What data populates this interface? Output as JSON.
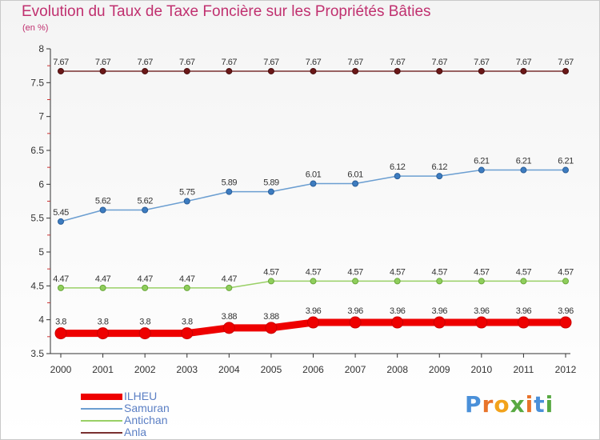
{
  "title": "Evolution du Taux de Taxe Foncière sur les Propriétés Bâties",
  "unit": "(en %)",
  "logo": "Proxiti",
  "chart_data": {
    "type": "line",
    "x": [
      "2000",
      "2001",
      "2002",
      "2003",
      "2004",
      "2005",
      "2006",
      "2007",
      "2008",
      "2009",
      "2010",
      "2011",
      "2012"
    ],
    "ylim": [
      3.5,
      8
    ],
    "yticks": [
      "3.5",
      "4",
      "4.5",
      "5",
      "5.5",
      "6",
      "6.5",
      "7",
      "7.5",
      "8"
    ],
    "grid": false,
    "legend_position": "bottom-left",
    "series": [
      {
        "name": "ILHEU",
        "color": "#ee0000",
        "values": [
          3.8,
          3.8,
          3.8,
          3.8,
          3.88,
          3.88,
          3.96,
          3.96,
          3.96,
          3.96,
          3.96,
          3.96,
          3.96
        ],
        "labels": [
          "3.8",
          "3.8",
          "3.8",
          "3.8",
          "3.88",
          "3.88",
          "3.96",
          "3.96",
          "3.96",
          "3.96",
          "3.96",
          "3.96",
          "3.96"
        ]
      },
      {
        "name": "Samuran",
        "color": "#6b9ed1",
        "values": [
          5.45,
          5.62,
          5.62,
          5.75,
          5.89,
          5.89,
          6.01,
          6.01,
          6.12,
          6.12,
          6.21,
          6.21,
          6.21
        ],
        "labels": [
          "5.45",
          "5.62",
          "5.62",
          "5.75",
          "5.89",
          "5.89",
          "6.01",
          "6.01",
          "6.12",
          "6.12",
          "6.21",
          "6.21",
          "6.21"
        ]
      },
      {
        "name": "Antichan",
        "color": "#99d066",
        "values": [
          4.47,
          4.47,
          4.47,
          4.47,
          4.47,
          4.57,
          4.57,
          4.57,
          4.57,
          4.57,
          4.57,
          4.57,
          4.57
        ],
        "labels": [
          "4.47",
          "4.47",
          "4.47",
          "4.47",
          "4.47",
          "4.57",
          "4.57",
          "4.57",
          "4.57",
          "4.57",
          "4.57",
          "4.57",
          "4.57"
        ]
      },
      {
        "name": "Anla",
        "color": "#7a3030",
        "values": [
          7.67,
          7.67,
          7.67,
          7.67,
          7.67,
          7.67,
          7.67,
          7.67,
          7.67,
          7.67,
          7.67,
          7.67,
          7.67
        ],
        "labels": [
          "7.67",
          "7.67",
          "7.67",
          "7.67",
          "7.67",
          "7.67",
          "7.67",
          "7.67",
          "7.67",
          "7.67",
          "7.67",
          "7.67",
          "7.67"
        ]
      }
    ]
  }
}
